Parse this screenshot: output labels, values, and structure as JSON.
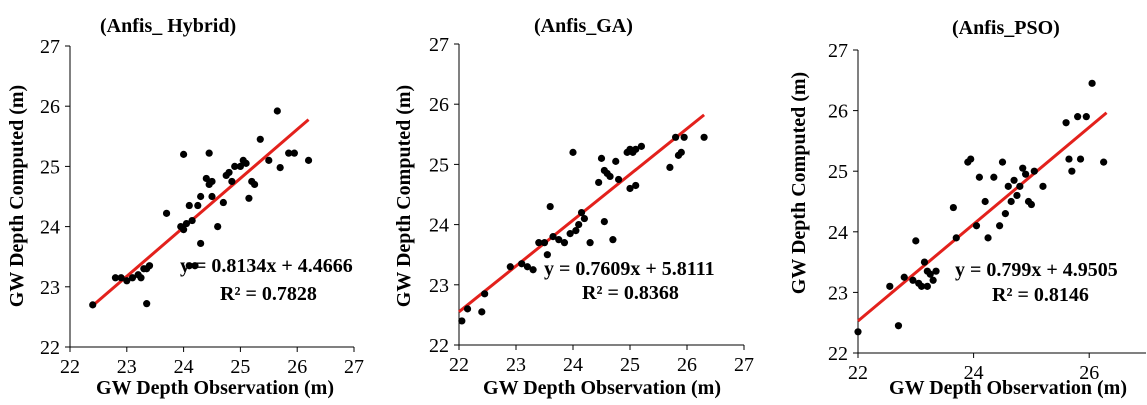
{
  "chart_data": [
    {
      "type": "scatter",
      "title": "(Anfis_ Hybrid)",
      "xlabel": "GW Depth Observation (m)",
      "ylabel": "GW Depth Computed (m)",
      "xlim": [
        22,
        27
      ],
      "ylim": [
        22,
        27
      ],
      "xticks": [
        "22",
        "23",
        "24",
        "25",
        "26",
        "27"
      ],
      "yticks": [
        "22",
        "23",
        "24",
        "25",
        "26",
        "27"
      ],
      "equation": "y = 0.8134x + 4.4666",
      "r2": "R² = 0.7828",
      "trendline": {
        "slope": 0.8134,
        "intercept": 4.4666,
        "x_range": [
          22.4,
          26.2
        ],
        "color": "#e3211c"
      },
      "point_color": "#000000",
      "points": [
        [
          22.4,
          22.7
        ],
        [
          22.8,
          23.15
        ],
        [
          22.9,
          23.15
        ],
        [
          23.0,
          23.1
        ],
        [
          23.1,
          23.15
        ],
        [
          23.2,
          23.2
        ],
        [
          23.25,
          23.15
        ],
        [
          23.3,
          23.3
        ],
        [
          23.35,
          23.3
        ],
        [
          23.4,
          23.35
        ],
        [
          23.35,
          22.72
        ],
        [
          23.7,
          24.22
        ],
        [
          23.95,
          24.0
        ],
        [
          24.0,
          23.95
        ],
        [
          24.0,
          25.2
        ],
        [
          24.05,
          24.05
        ],
        [
          24.1,
          24.35
        ],
        [
          24.1,
          23.35
        ],
        [
          24.15,
          24.1
        ],
        [
          24.2,
          23.35
        ],
        [
          24.25,
          24.35
        ],
        [
          24.3,
          24.5
        ],
        [
          24.3,
          23.72
        ],
        [
          24.4,
          24.8
        ],
        [
          24.45,
          24.7
        ],
        [
          24.5,
          24.5
        ],
        [
          24.5,
          24.75
        ],
        [
          24.45,
          25.22
        ],
        [
          24.6,
          24.0
        ],
        [
          24.7,
          24.4
        ],
        [
          24.75,
          24.85
        ],
        [
          24.8,
          24.9
        ],
        [
          24.85,
          24.75
        ],
        [
          24.9,
          25.0
        ],
        [
          25.0,
          25.0
        ],
        [
          25.05,
          25.1
        ],
        [
          25.1,
          25.05
        ],
        [
          25.15,
          24.47
        ],
        [
          25.2,
          24.75
        ],
        [
          25.25,
          24.7
        ],
        [
          25.35,
          25.45
        ],
        [
          25.5,
          25.1
        ],
        [
          25.65,
          25.92
        ],
        [
          25.7,
          24.98
        ],
        [
          25.85,
          25.22
        ],
        [
          25.95,
          25.22
        ],
        [
          26.2,
          25.1
        ]
      ]
    },
    {
      "type": "scatter",
      "title": "(Anfis_GA)",
      "xlabel": "GW Depth Observation (m)",
      "ylabel": "GW Depth Computed (m)",
      "xlim": [
        22,
        27
      ],
      "ylim": [
        22,
        27
      ],
      "xticks": [
        "22",
        "23",
        "24",
        "25",
        "26",
        "27"
      ],
      "yticks": [
        "22",
        "23",
        "24",
        "25",
        "26",
        "27"
      ],
      "equation": "y = 0.7609x + 5.8111",
      "r2": "R² = 0.8368",
      "trendline": {
        "slope": 0.7609,
        "intercept": 5.8111,
        "x_range": [
          22.0,
          26.3
        ],
        "color": "#e3211c"
      },
      "point_color": "#000000",
      "points": [
        [
          22.05,
          22.4
        ],
        [
          22.15,
          22.6
        ],
        [
          22.4,
          22.55
        ],
        [
          22.45,
          22.85
        ],
        [
          22.9,
          23.3
        ],
        [
          23.1,
          23.35
        ],
        [
          23.2,
          23.3
        ],
        [
          23.3,
          23.25
        ],
        [
          23.4,
          23.7
        ],
        [
          23.5,
          23.7
        ],
        [
          23.55,
          23.5
        ],
        [
          23.6,
          24.3
        ],
        [
          23.65,
          23.8
        ],
        [
          23.75,
          23.75
        ],
        [
          23.85,
          23.7
        ],
        [
          23.95,
          23.85
        ],
        [
          24.0,
          25.2
        ],
        [
          24.05,
          23.9
        ],
        [
          24.1,
          24.0
        ],
        [
          24.15,
          24.2
        ],
        [
          24.2,
          24.1
        ],
        [
          24.3,
          23.7
        ],
        [
          24.45,
          24.7
        ],
        [
          24.5,
          25.1
        ],
        [
          24.55,
          24.05
        ],
        [
          24.55,
          24.9
        ],
        [
          24.6,
          24.85
        ],
        [
          24.65,
          24.8
        ],
        [
          24.7,
          23.75
        ],
        [
          24.75,
          25.05
        ],
        [
          24.8,
          24.75
        ],
        [
          24.95,
          25.2
        ],
        [
          25.0,
          24.6
        ],
        [
          25.0,
          25.25
        ],
        [
          25.05,
          25.2
        ],
        [
          25.1,
          24.65
        ],
        [
          25.1,
          25.25
        ],
        [
          25.2,
          25.3
        ],
        [
          25.7,
          24.95
        ],
        [
          25.8,
          25.45
        ],
        [
          25.85,
          25.15
        ],
        [
          25.9,
          25.2
        ],
        [
          25.95,
          25.45
        ],
        [
          26.3,
          25.45
        ]
      ]
    },
    {
      "type": "scatter",
      "title": "(Anfis_PSO)",
      "xlabel": "GW Depth Observation (m)",
      "ylabel": "GW Depth Computed (m)",
      "xlim": [
        22,
        27
      ],
      "ylim": [
        22,
        27
      ],
      "xticks": [
        "22",
        "24",
        "26"
      ],
      "yticks": [
        "22",
        "23",
        "24",
        "25",
        "26",
        "27"
      ],
      "equation": "y = 0.799x + 4.9505",
      "r2": "R² = 0.8146",
      "trendline": {
        "slope": 0.799,
        "intercept": 4.9505,
        "x_range": [
          22.0,
          26.3
        ],
        "color": "#e3211c"
      },
      "point_color": "#000000",
      "points": [
        [
          22.0,
          22.35
        ],
        [
          22.55,
          23.1
        ],
        [
          22.7,
          22.45
        ],
        [
          22.8,
          23.25
        ],
        [
          22.95,
          23.2
        ],
        [
          23.0,
          23.85
        ],
        [
          23.05,
          23.15
        ],
        [
          23.1,
          23.1
        ],
        [
          23.15,
          23.5
        ],
        [
          23.2,
          23.35
        ],
        [
          23.2,
          23.1
        ],
        [
          23.25,
          23.3
        ],
        [
          23.3,
          23.2
        ],
        [
          23.35,
          23.35
        ],
        [
          23.65,
          24.4
        ],
        [
          23.7,
          23.9
        ],
        [
          23.9,
          25.15
        ],
        [
          23.95,
          25.2
        ],
        [
          24.05,
          24.1
        ],
        [
          24.1,
          24.9
        ],
        [
          24.2,
          24.5
        ],
        [
          24.25,
          23.9
        ],
        [
          24.35,
          24.9
        ],
        [
          24.45,
          24.1
        ],
        [
          24.5,
          25.15
        ],
        [
          24.55,
          24.3
        ],
        [
          24.6,
          24.75
        ],
        [
          24.65,
          24.5
        ],
        [
          24.7,
          24.85
        ],
        [
          24.75,
          24.6
        ],
        [
          24.8,
          24.75
        ],
        [
          24.85,
          25.05
        ],
        [
          24.9,
          24.95
        ],
        [
          24.95,
          24.5
        ],
        [
          25.0,
          24.45
        ],
        [
          25.05,
          25.0
        ],
        [
          25.2,
          24.75
        ],
        [
          25.6,
          25.8
        ],
        [
          25.65,
          25.2
        ],
        [
          25.7,
          25.0
        ],
        [
          25.8,
          25.9
        ],
        [
          25.85,
          25.2
        ],
        [
          25.95,
          25.9
        ],
        [
          26.05,
          26.45
        ],
        [
          26.25,
          25.15
        ]
      ]
    }
  ]
}
